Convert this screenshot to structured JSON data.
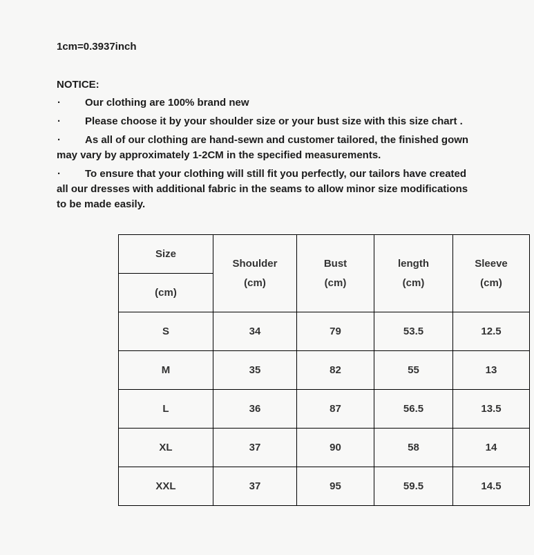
{
  "document": {
    "conversion_note": "1cm=0.3937inch",
    "notice_title": "NOTICE:",
    "bullet_char": "·",
    "notice_items": [
      "Our clothing are 100% brand new",
      "Please choose it by your shoulder size or your bust size with this size chart .",
      "As all of our clothing are hand-sewn and customer tailored, the finished gown may vary by approximately 1-2CM in the specified measurements.",
      "To ensure that your clothing will still fit you perfectly, our tailors have created all our dresses with additional fabric in the seams to allow minor size modifications to be made easily."
    ]
  },
  "size_chart": {
    "corner": {
      "label": "Size",
      "unit": "(cm)"
    },
    "columns": [
      {
        "label": "Shoulder",
        "unit": "(cm)"
      },
      {
        "label": "Bust",
        "unit": "(cm)"
      },
      {
        "label": "length",
        "unit": "(cm)"
      },
      {
        "label": "Sleeve",
        "unit": "(cm)"
      }
    ],
    "rows": [
      {
        "size": "S",
        "shoulder": "34",
        "bust": "79",
        "length": "53.5",
        "sleeve": "12.5"
      },
      {
        "size": "M",
        "shoulder": "35",
        "bust": "82",
        "length": "55",
        "sleeve": "13"
      },
      {
        "size": "L",
        "shoulder": "36",
        "bust": "87",
        "length": "56.5",
        "sleeve": "13.5"
      },
      {
        "size": "XL",
        "shoulder": "37",
        "bust": "90",
        "length": "58",
        "sleeve": "14"
      },
      {
        "size": "XXL",
        "shoulder": "37",
        "bust": "95",
        "length": "59.5",
        "sleeve": "14.5"
      }
    ]
  },
  "colors": {
    "page_background": "#f7f7f6",
    "body_text": "#1c1c1c",
    "table_text": "#333333",
    "table_border": "#000000"
  }
}
